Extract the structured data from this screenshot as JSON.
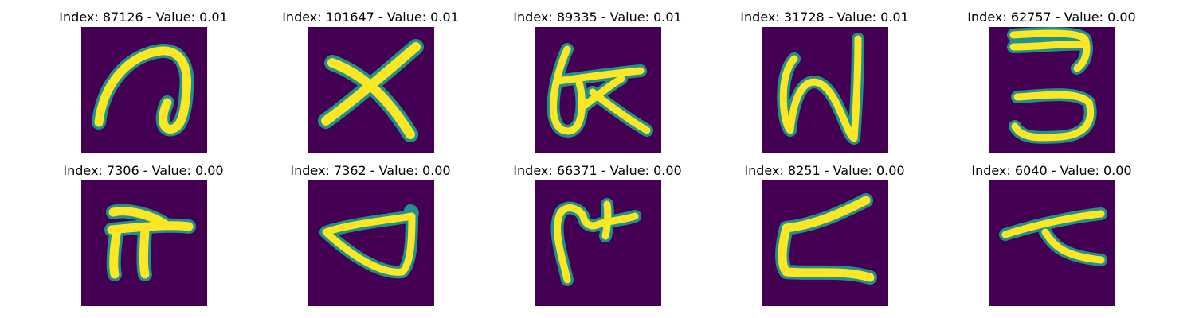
{
  "panels": [
    {
      "index": "87126",
      "value": "0.01",
      "title": "Index: 87126 - Value: 0.01",
      "glyph": "a-loop-glyph"
    },
    {
      "index": "101647",
      "value": "0.01",
      "title": "Index: 101647 - Value: 0.01",
      "glyph": "x-cross-glyph"
    },
    {
      "index": "89335",
      "value": "0.01",
      "title": "Index: 89335 - Value: 0.01",
      "glyph": "loop-k-glyph"
    },
    {
      "index": "31728",
      "value": "0.01",
      "title": "Index: 31728 - Value: 0.01",
      "glyph": "n-zigzag-glyph"
    },
    {
      "index": "62757",
      "value": "0.00",
      "title": "Index: 62757 - Value: 0.00",
      "glyph": "three-glyph"
    },
    {
      "index": "7306",
      "value": "0.00",
      "title": "Index: 7306 - Value: 0.00",
      "glyph": "pi-hook-glyph"
    },
    {
      "index": "7362",
      "value": "0.00",
      "title": "Index: 7362 - Value: 0.00",
      "glyph": "triangle-loop-glyph"
    },
    {
      "index": "66371",
      "value": "0.00",
      "title": "Index: 66371 - Value: 0.00",
      "glyph": "hook-cross-glyph"
    },
    {
      "index": "8251",
      "value": "0.00",
      "title": "Index: 8251 - Value: 0.00",
      "glyph": "z-slant-glyph"
    },
    {
      "index": "6040",
      "value": "0.00",
      "title": "Index: 6040 - Value: 0.00",
      "glyph": "slant-stroke-glyph"
    }
  ],
  "colors": {
    "background": "#440154",
    "stroke_outer": "#21918c",
    "stroke_inner": "#fde725"
  }
}
